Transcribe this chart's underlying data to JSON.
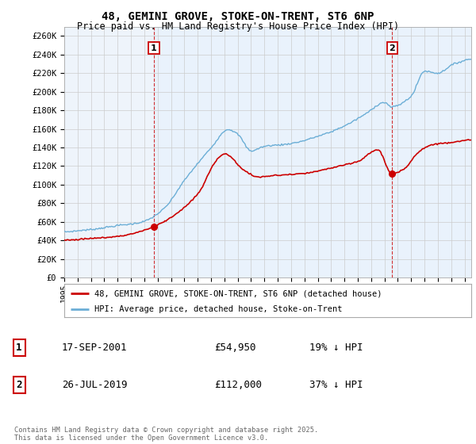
{
  "title_line1": "48, GEMINI GROVE, STOKE-ON-TRENT, ST6 6NP",
  "title_line2": "Price paid vs. HM Land Registry's House Price Index (HPI)",
  "ylabel_ticks": [
    "£0",
    "£20K",
    "£40K",
    "£60K",
    "£80K",
    "£100K",
    "£120K",
    "£140K",
    "£160K",
    "£180K",
    "£200K",
    "£220K",
    "£240K",
    "£260K"
  ],
  "ytick_values": [
    0,
    20000,
    40000,
    60000,
    80000,
    100000,
    120000,
    140000,
    160000,
    180000,
    200000,
    220000,
    240000,
    260000
  ],
  "ylim": [
    0,
    270000
  ],
  "xlim_start": 1995.0,
  "xlim_end": 2025.5,
  "hpi_color": "#6baed6",
  "price_color": "#cc0000",
  "marker1_date": 2001.71,
  "marker1_price": 54950,
  "marker2_date": 2019.57,
  "marker2_price": 112000,
  "legend_label_price": "48, GEMINI GROVE, STOKE-ON-TRENT, ST6 6NP (detached house)",
  "legend_label_hpi": "HPI: Average price, detached house, Stoke-on-Trent",
  "table_row1": [
    "1",
    "17-SEP-2001",
    "£54,950",
    "19% ↓ HPI"
  ],
  "table_row2": [
    "2",
    "26-JUL-2019",
    "£112,000",
    "37% ↓ HPI"
  ],
  "footer": "Contains HM Land Registry data © Crown copyright and database right 2025.\nThis data is licensed under the Open Government Licence v3.0.",
  "background_color": "#ffffff",
  "plot_bg_color": "#eef4fb",
  "grid_color": "#cccccc",
  "shade_color": "#ddeeff"
}
